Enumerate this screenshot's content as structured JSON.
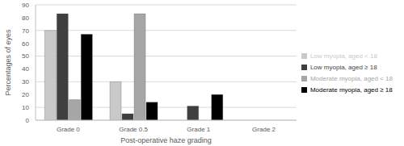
{
  "chart_data": {
    "type": "bar",
    "x_label": "Post-operative haze grading",
    "y_label": "Percentages of eyes",
    "categories": [
      "Grade 0",
      "Grade 0.5",
      "Grade 1",
      "Grade 2"
    ],
    "series": [
      {
        "name": "Low myopia, aged < 18",
        "color": "#c9c9c9",
        "values": [
          70,
          30,
          0,
          0
        ]
      },
      {
        "name": "Low myopia, aged ≥ 18",
        "color": "#3f3f3f",
        "values": [
          83,
          5,
          11,
          0
        ]
      },
      {
        "name": "Moderate myopia, aged < 18",
        "color": "#a6a6a6",
        "values": [
          16,
          83,
          0,
          0
        ]
      },
      {
        "name": "Moderate myopia, aged ≥ 18",
        "color": "#000000",
        "values": [
          67,
          14,
          20,
          0
        ]
      }
    ],
    "ylim": [
      0,
      90
    ],
    "yticks": [
      0,
      10,
      20,
      30,
      40,
      50,
      60,
      70,
      80,
      90
    ],
    "grid": true,
    "legend": "right"
  }
}
